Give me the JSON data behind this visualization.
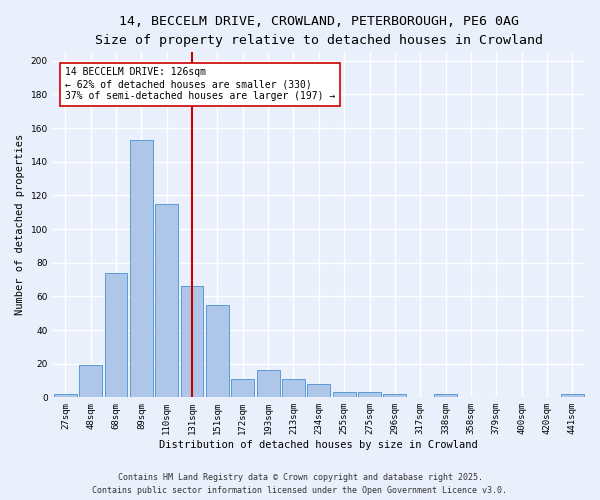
{
  "title_line1": "14, BECCELM DRIVE, CROWLAND, PETERBOROUGH, PE6 0AG",
  "title_line2": "Size of property relative to detached houses in Crowland",
  "xlabel": "Distribution of detached houses by size in Crowland",
  "ylabel": "Number of detached properties",
  "categories": [
    "27sqm",
    "48sqm",
    "68sqm",
    "89sqm",
    "110sqm",
    "131sqm",
    "151sqm",
    "172sqm",
    "193sqm",
    "213sqm",
    "234sqm",
    "255sqm",
    "275sqm",
    "296sqm",
    "317sqm",
    "338sqm",
    "358sqm",
    "379sqm",
    "400sqm",
    "420sqm",
    "441sqm"
  ],
  "values": [
    2,
    19,
    74,
    153,
    115,
    66,
    55,
    11,
    16,
    11,
    8,
    3,
    3,
    2,
    0,
    2,
    0,
    0,
    0,
    0,
    2
  ],
  "bar_color": "#aec6e8",
  "bar_edge_color": "#5b9bd5",
  "vline_x": 5.0,
  "vline_color": "#cc0000",
  "annotation_text": "14 BECCELM DRIVE: 126sqm\n← 62% of detached houses are smaller (330)\n37% of semi-detached houses are larger (197) →",
  "annotation_box_color": "#ffffff",
  "annotation_box_edge": "#cc0000",
  "ylim": [
    0,
    205
  ],
  "yticks": [
    0,
    20,
    40,
    60,
    80,
    100,
    120,
    140,
    160,
    180,
    200
  ],
  "footer_line1": "Contains HM Land Registry data © Crown copyright and database right 2025.",
  "footer_line2": "Contains public sector information licensed under the Open Government Licence v3.0.",
  "bg_color": "#eaf0fb",
  "plot_bg_color": "#eaf0fb",
  "grid_color": "#ffffff",
  "title_fontsize": 9.5,
  "subtitle_fontsize": 8.5,
  "label_fontsize": 7.5,
  "tick_fontsize": 6.5,
  "footer_fontsize": 6.0,
  "ann_fontsize": 7.0
}
